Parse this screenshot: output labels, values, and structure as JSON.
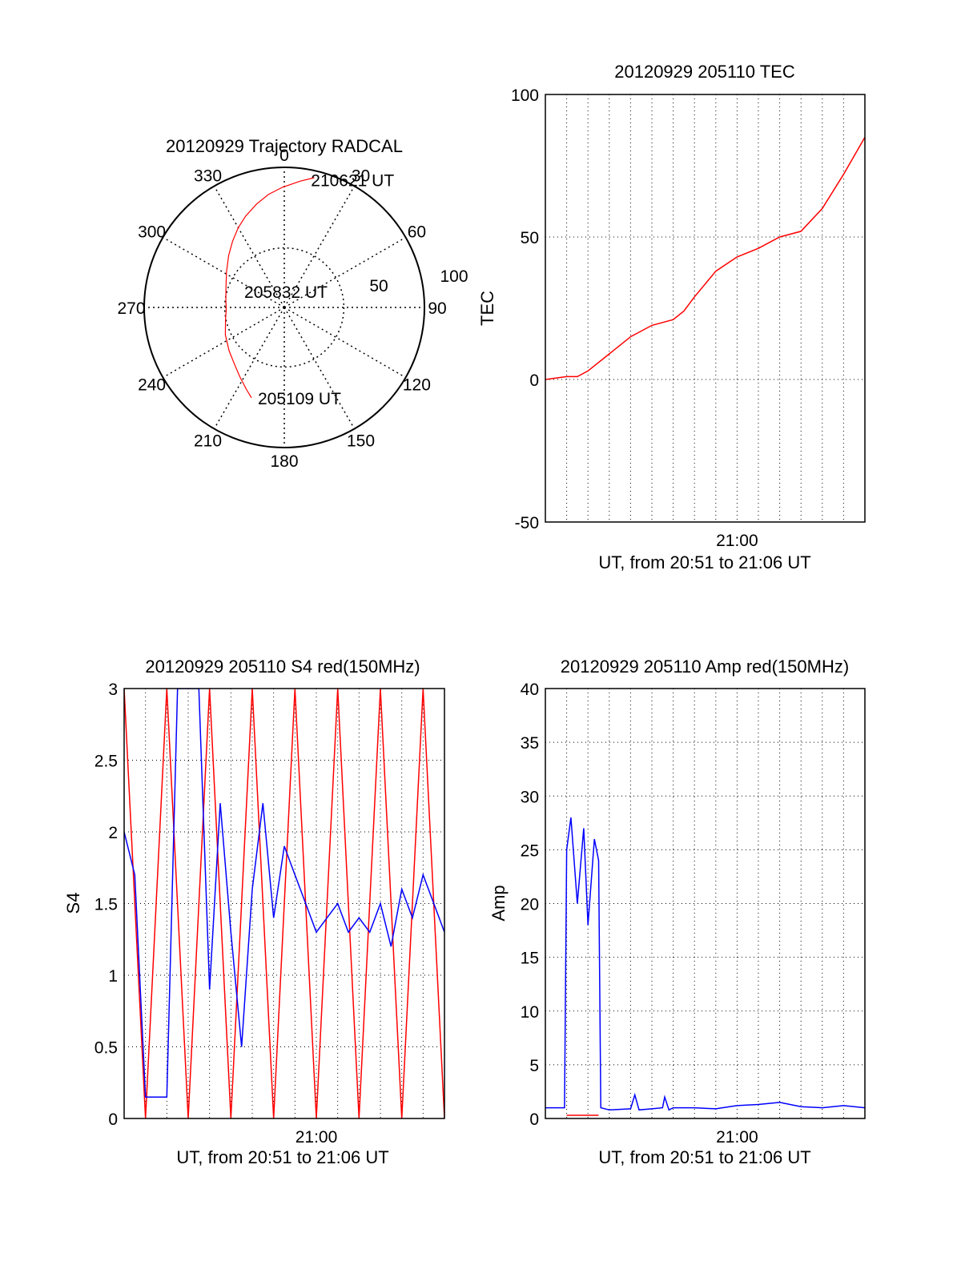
{
  "chart_data": [
    {
      "type": "polar",
      "title": "20120929 Trajectory RADCAL",
      "angle_labels": [
        "0",
        "30",
        "60",
        "90",
        "120",
        "150",
        "180",
        "210",
        "240",
        "270",
        "300",
        "330"
      ],
      "radius_labels": [
        "50",
        "100"
      ],
      "rlim": [
        0,
        100
      ],
      "grid": true,
      "track_color": "#ff0000",
      "track": [
        {
          "az": 200,
          "r": 96
        },
        {
          "az": 205,
          "r": 90
        },
        {
          "az": 213,
          "r": 82
        },
        {
          "az": 222,
          "r": 75
        },
        {
          "az": 232,
          "r": 70
        },
        {
          "az": 245,
          "r": 65
        },
        {
          "az": 258,
          "r": 60
        },
        {
          "az": 268,
          "r": 58
        },
        {
          "az": 278,
          "r": 59
        },
        {
          "az": 290,
          "r": 62
        },
        {
          "az": 302,
          "r": 68
        },
        {
          "az": 313,
          "r": 76
        },
        {
          "az": 322,
          "r": 84
        },
        {
          "az": 330,
          "r": 92
        },
        {
          "az": 337,
          "r": 99
        },
        {
          "az": 345,
          "r": 107
        },
        {
          "az": 352,
          "r": 114
        },
        {
          "az": 359,
          "r": 120
        },
        {
          "az": 7,
          "r": 127
        },
        {
          "az": 13,
          "r": 133
        }
      ],
      "annotations": [
        {
          "text": "205109 UT",
          "az": 200,
          "r": 96
        },
        {
          "text": "205832 UT",
          "az": 268,
          "r": 20
        },
        {
          "text": "210621 UT",
          "az": 14,
          "r": 133
        }
      ]
    },
    {
      "type": "line",
      "title": "20120929 205110 TEC",
      "xlabel": "UT, from 20:51 to 21:06 UT",
      "ylabel": "TEC",
      "xticks": [
        "21:00"
      ],
      "ylim": [
        -50,
        100
      ],
      "yticks": [
        -50,
        0,
        50,
        100
      ],
      "grid": true,
      "series": [
        {
          "color": "#ff0000",
          "x": [
            0,
            1,
            1.5,
            2,
            3,
            4,
            5,
            6,
            6.5,
            7,
            8,
            9,
            10,
            11,
            12,
            13,
            14,
            15
          ],
          "y": [
            0,
            1,
            1,
            3,
            9,
            15,
            19,
            21,
            24,
            29,
            38,
            43,
            46,
            50,
            52,
            60,
            72,
            85
          ]
        }
      ]
    },
    {
      "type": "line",
      "title": "20120929 205110 S4 red(150MHz)",
      "xlabel": "UT, from 20:51 to 21:06 UT",
      "ylabel": "S4",
      "xticks": [
        "21:00"
      ],
      "ylim": [
        0,
        3
      ],
      "yticks": [
        "0",
        "0.5",
        "1",
        "1.5",
        "2",
        "2.5",
        "3"
      ],
      "grid": true,
      "series": [
        {
          "color": "#0000ff",
          "x": [
            0,
            0.5,
            1,
            1.5,
            2,
            2.5,
            3,
            3.5,
            4,
            4.5,
            5,
            5.5,
            6,
            6.5,
            7,
            7.5,
            8,
            8.5,
            9,
            9.5,
            10,
            10.5,
            11,
            11.5,
            12,
            12.5,
            13,
            13.5,
            14,
            14.5,
            15
          ],
          "y": [
            2.0,
            1.7,
            0.15,
            0.15,
            0.15,
            3.0,
            3.0,
            3.0,
            0.9,
            2.2,
            1.3,
            0.5,
            1.6,
            2.2,
            1.4,
            1.9,
            1.7,
            1.5,
            1.3,
            1.4,
            1.5,
            1.3,
            1.4,
            1.3,
            1.5,
            1.2,
            1.6,
            1.4,
            1.7,
            1.5,
            1.3
          ]
        },
        {
          "color": "#ff0000",
          "x": [
            0,
            1,
            2,
            3,
            4,
            5,
            6,
            7,
            8,
            9,
            10,
            11,
            12,
            13,
            14,
            15
          ],
          "y": [
            3.0,
            0,
            3.0,
            0,
            3.0,
            0,
            3.0,
            0,
            3.0,
            0,
            3.0,
            0,
            3.0,
            0,
            3.0,
            0
          ]
        }
      ]
    },
    {
      "type": "line",
      "title": "20120929 205110 Amp red(150MHz)",
      "xlabel": "UT, from 20:51 to 21:06 UT",
      "ylabel": "Amp",
      "xticks": [
        "21:00"
      ],
      "ylim": [
        0,
        40
      ],
      "yticks": [
        0,
        5,
        10,
        15,
        20,
        25,
        30,
        35,
        40
      ],
      "grid": true,
      "series": [
        {
          "color": "#0000ff",
          "x": [
            0,
            0.5,
            0.9,
            1.0,
            1.2,
            1.5,
            1.8,
            2.0,
            2.3,
            2.5,
            2.6,
            3,
            4,
            4.2,
            4.4,
            5,
            5.5,
            5.6,
            5.8,
            6,
            7,
            8,
            9,
            10,
            11,
            12,
            13,
            14,
            15
          ],
          "y": [
            1.0,
            1.0,
            1.0,
            25,
            28,
            20,
            27,
            18,
            26,
            24,
            1.0,
            0.8,
            0.9,
            2.2,
            0.8,
            0.9,
            1.0,
            2.0,
            0.8,
            1.0,
            1.0,
            0.9,
            1.2,
            1.3,
            1.5,
            1.1,
            1.0,
            1.2,
            1.0
          ]
        },
        {
          "color": "#ff0000",
          "x": [
            1.0,
            2.5
          ],
          "y": [
            0.3,
            0.3
          ]
        }
      ]
    }
  ]
}
